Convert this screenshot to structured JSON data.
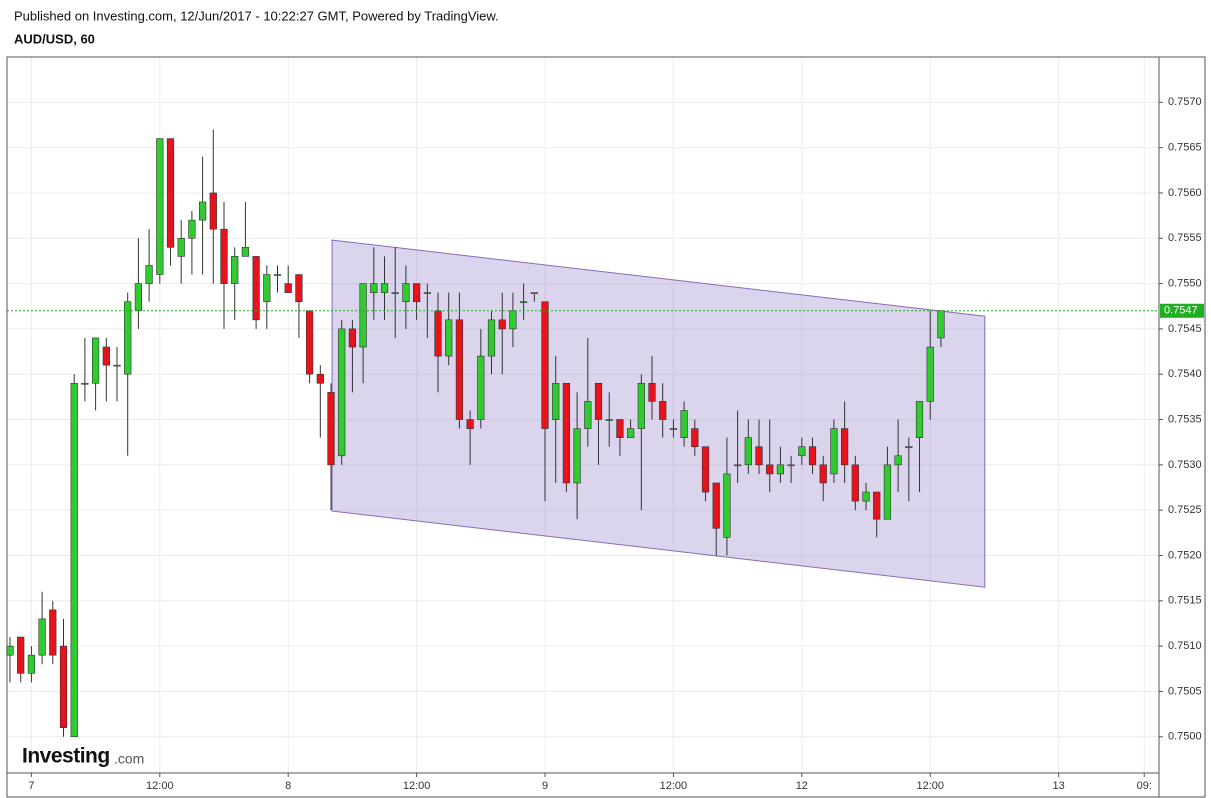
{
  "header": {
    "published": "Published on Investing.com, 12/Jun/2017 - 10:22:27 GMT, Powered by TradingView.",
    "symbol": "AUD/USD, 60"
  },
  "logo": {
    "brand": "Investing",
    "suffix": ".com"
  },
  "chart_data": {
    "type": "candlestick",
    "x": [
      0,
      1,
      2,
      3,
      4,
      5,
      6,
      7,
      8,
      9,
      10,
      11,
      12,
      13,
      14,
      15,
      16,
      17,
      18,
      19,
      20,
      21,
      22,
      23,
      24,
      25,
      26,
      27,
      28,
      29,
      30,
      31,
      32,
      33,
      34,
      35,
      36,
      37,
      38,
      39,
      40,
      41,
      42,
      43,
      44,
      45,
      46,
      47,
      48,
      49,
      50,
      51,
      52,
      53,
      54,
      55,
      56,
      57,
      58,
      59,
      60,
      61,
      62,
      63,
      64,
      65,
      66,
      67,
      68,
      69,
      70,
      71,
      72,
      73,
      74,
      75,
      76,
      77,
      78,
      79,
      80,
      81,
      82,
      83,
      84,
      85,
      86,
      87
    ],
    "open": [
      0.7509,
      0.7511,
      0.7507,
      0.7509,
      0.7514,
      0.751,
      0.75,
      0.7539,
      0.7539,
      0.7543,
      0.7541,
      0.754,
      0.7547,
      0.755,
      0.7551,
      0.7566,
      0.7553,
      0.7555,
      0.7557,
      0.756,
      0.7556,
      0.755,
      0.7553,
      0.7553,
      0.7548,
      0.7551,
      0.755,
      0.7551,
      0.7547,
      0.754,
      0.7538,
      0.7531,
      0.7545,
      0.7543,
      0.7549,
      0.7549,
      0.7549,
      0.7548,
      0.755,
      0.7549,
      0.7547,
      0.7542,
      0.7546,
      0.7535,
      0.7535,
      0.7542,
      0.7546,
      0.7545,
      0.7548,
      0.7549,
      0.7548,
      0.7535,
      0.7539,
      0.7528,
      0.7534,
      0.7539,
      0.7535,
      0.7535,
      0.7533,
      0.7534,
      0.7539,
      0.7537,
      0.7534,
      0.7533,
      0.7534,
      0.7532,
      0.7528,
      0.7522,
      0.753,
      0.753,
      0.7532,
      0.753,
      0.7529,
      0.753,
      0.7531,
      0.7532,
      0.753,
      0.7529,
      0.7534,
      0.753,
      0.7526,
      0.7527,
      0.7524,
      0.753,
      0.7532,
      0.7533,
      0.7537,
      0.7544
    ],
    "high": [
      0.7511,
      0.7511,
      0.751,
      0.7516,
      0.7515,
      0.7513,
      0.754,
      0.7544,
      0.7544,
      0.7544,
      0.7543,
      0.7549,
      0.7555,
      0.7556,
      0.7566,
      0.7566,
      0.7557,
      0.7558,
      0.7564,
      0.7567,
      0.7559,
      0.7554,
      0.7559,
      0.7553,
      0.7552,
      0.7552,
      0.7552,
      0.7551,
      0.7547,
      0.7541,
      0.7539,
      0.7546,
      0.7546,
      0.755,
      0.7554,
      0.7553,
      0.7554,
      0.7552,
      0.755,
      0.755,
      0.7549,
      0.7549,
      0.7549,
      0.7536,
      0.7545,
      0.7547,
      0.7549,
      0.7549,
      0.755,
      0.7549,
      0.7548,
      0.7542,
      0.7539,
      0.7538,
      0.7544,
      0.7539,
      0.7538,
      0.7535,
      0.7535,
      0.754,
      0.7542,
      0.7539,
      0.7535,
      0.7537,
      0.7535,
      0.7532,
      0.7528,
      0.7533,
      0.7536,
      0.7535,
      0.7535,
      0.7535,
      0.7532,
      0.7531,
      0.7533,
      0.7533,
      0.7531,
      0.7535,
      0.7537,
      0.7531,
      0.7528,
      0.7527,
      0.7532,
      0.7535,
      0.7533,
      0.7537,
      0.7547,
      0.7547
    ],
    "low": [
      0.7506,
      0.7506,
      0.7506,
      0.7508,
      0.7508,
      0.75,
      0.75,
      0.7537,
      0.7536,
      0.7537,
      0.7537,
      0.7531,
      0.7545,
      0.7548,
      0.755,
      0.7552,
      0.755,
      0.7551,
      0.7551,
      0.755,
      0.7545,
      0.7546,
      0.7553,
      0.7545,
      0.7545,
      0.7549,
      0.7549,
      0.7544,
      0.7539,
      0.7533,
      0.7525,
      0.753,
      0.7538,
      0.7539,
      0.7546,
      0.7546,
      0.7544,
      0.7545,
      0.7546,
      0.7544,
      0.7538,
      0.7541,
      0.7534,
      0.753,
      0.7534,
      0.754,
      0.754,
      0.7543,
      0.7546,
      0.7548,
      0.7526,
      0.7528,
      0.7527,
      0.7524,
      0.7532,
      0.753,
      0.7532,
      0.7531,
      0.7533,
      0.7525,
      0.7535,
      0.7533,
      0.7533,
      0.7532,
      0.7531,
      0.7526,
      0.752,
      0.752,
      0.7528,
      0.7529,
      0.7529,
      0.7527,
      0.7528,
      0.7528,
      0.753,
      0.7529,
      0.7526,
      0.7528,
      0.7528,
      0.7525,
      0.7525,
      0.7522,
      0.7524,
      0.7527,
      0.7526,
      0.7527,
      0.7535,
      0.7543
    ],
    "close": [
      0.751,
      0.7507,
      0.7509,
      0.7513,
      0.7509,
      0.7501,
      0.7539,
      0.7539,
      0.7544,
      0.7541,
      0.7541,
      0.7548,
      0.755,
      0.7552,
      0.7566,
      0.7554,
      0.7555,
      0.7557,
      0.7559,
      0.7556,
      0.755,
      0.7553,
      0.7554,
      0.7546,
      0.7551,
      0.7551,
      0.7549,
      0.7548,
      0.754,
      0.7539,
      0.753,
      0.7545,
      0.7543,
      0.755,
      0.755,
      0.755,
      0.7549,
      0.755,
      0.7548,
      0.7549,
      0.7542,
      0.7546,
      0.7535,
      0.7534,
      0.7542,
      0.7546,
      0.7545,
      0.7547,
      0.7548,
      0.7549,
      0.7534,
      0.7539,
      0.7528,
      0.7534,
      0.7537,
      0.7535,
      0.7535,
      0.7533,
      0.7534,
      0.7539,
      0.7537,
      0.7535,
      0.7534,
      0.7536,
      0.7532,
      0.7527,
      0.7523,
      0.7529,
      0.753,
      0.7533,
      0.753,
      0.7529,
      0.753,
      0.753,
      0.7532,
      0.753,
      0.7528,
      0.7534,
      0.753,
      0.7526,
      0.7527,
      0.7524,
      0.753,
      0.7531,
      0.7532,
      0.7537,
      0.7543,
      0.7547
    ],
    "up_color": "#2fcb2f",
    "down_color": "#e5141c",
    "wick_color": "#333333",
    "xlim": [
      -0.28,
      107.38
    ],
    "xticks": [
      {
        "value": 2,
        "label": "7"
      },
      {
        "value": 14,
        "label": "12:00"
      },
      {
        "value": 26,
        "label": "8"
      },
      {
        "value": 38,
        "label": "12:00"
      },
      {
        "value": 50,
        "label": "9"
      },
      {
        "value": 62,
        "label": "12:00"
      },
      {
        "value": 74,
        "label": "12"
      },
      {
        "value": 86,
        "label": "12:00"
      },
      {
        "value": 98,
        "label": "13"
      },
      {
        "value": 106,
        "label": "09:"
      }
    ],
    "ylim": [
      0.7496,
      0.7575
    ],
    "yticks": [
      {
        "value": 0.75,
        "label": "0.7500"
      },
      {
        "value": 0.7505,
        "label": "0.7505"
      },
      {
        "value": 0.751,
        "label": "0.7510"
      },
      {
        "value": 0.7515,
        "label": "0.7515"
      },
      {
        "value": 0.752,
        "label": "0.7520"
      },
      {
        "value": 0.7525,
        "label": "0.7525"
      },
      {
        "value": 0.753,
        "label": "0.7530"
      },
      {
        "value": 0.7535,
        "label": "0.7535"
      },
      {
        "value": 0.754,
        "label": "0.7540"
      },
      {
        "value": 0.7545,
        "label": "0.7545"
      },
      {
        "value": 0.755,
        "label": "0.7550"
      },
      {
        "value": 0.7555,
        "label": "0.7555"
      },
      {
        "value": 0.756,
        "label": "0.7560"
      },
      {
        "value": 0.7565,
        "label": "0.7565"
      },
      {
        "value": 0.757,
        "label": "0.7570"
      }
    ],
    "grid": true,
    "last_price": {
      "value": 0.7547,
      "label": "0.7547",
      "color": "#1fae1f"
    },
    "channel": {
      "x": [
        30.1,
        91.1
      ],
      "upper": [
        0.75548,
        0.75464
      ],
      "lower": [
        0.75249,
        0.75165
      ],
      "fill": "rgba(140,120,200,0.32)",
      "stroke": "#8a6ab8"
    }
  }
}
